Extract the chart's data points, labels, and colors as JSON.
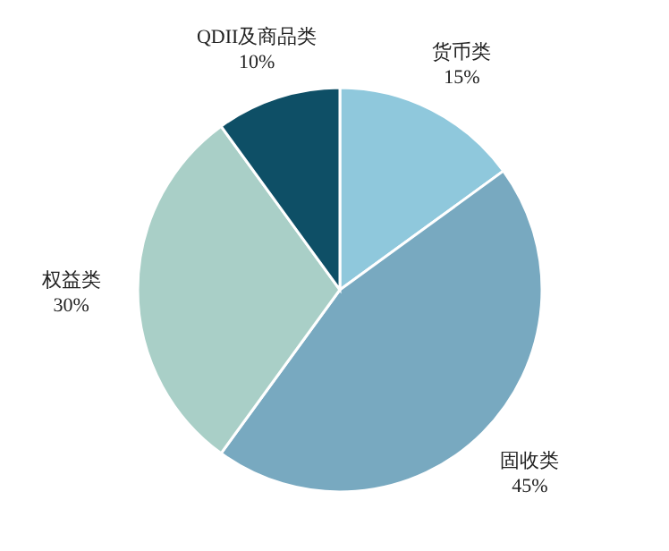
{
  "chart_data": {
    "type": "pie",
    "categories": [
      "货币类",
      "固收类",
      "权益类",
      "QDII及商品类"
    ],
    "values": [
      15,
      45,
      30,
      10
    ],
    "colors": [
      "#8fc8dc",
      "#78a9c0",
      "#a9cfc7",
      "#0e4f66"
    ],
    "value_labels": [
      "15%",
      "45%",
      "30%",
      "10%"
    ]
  }
}
